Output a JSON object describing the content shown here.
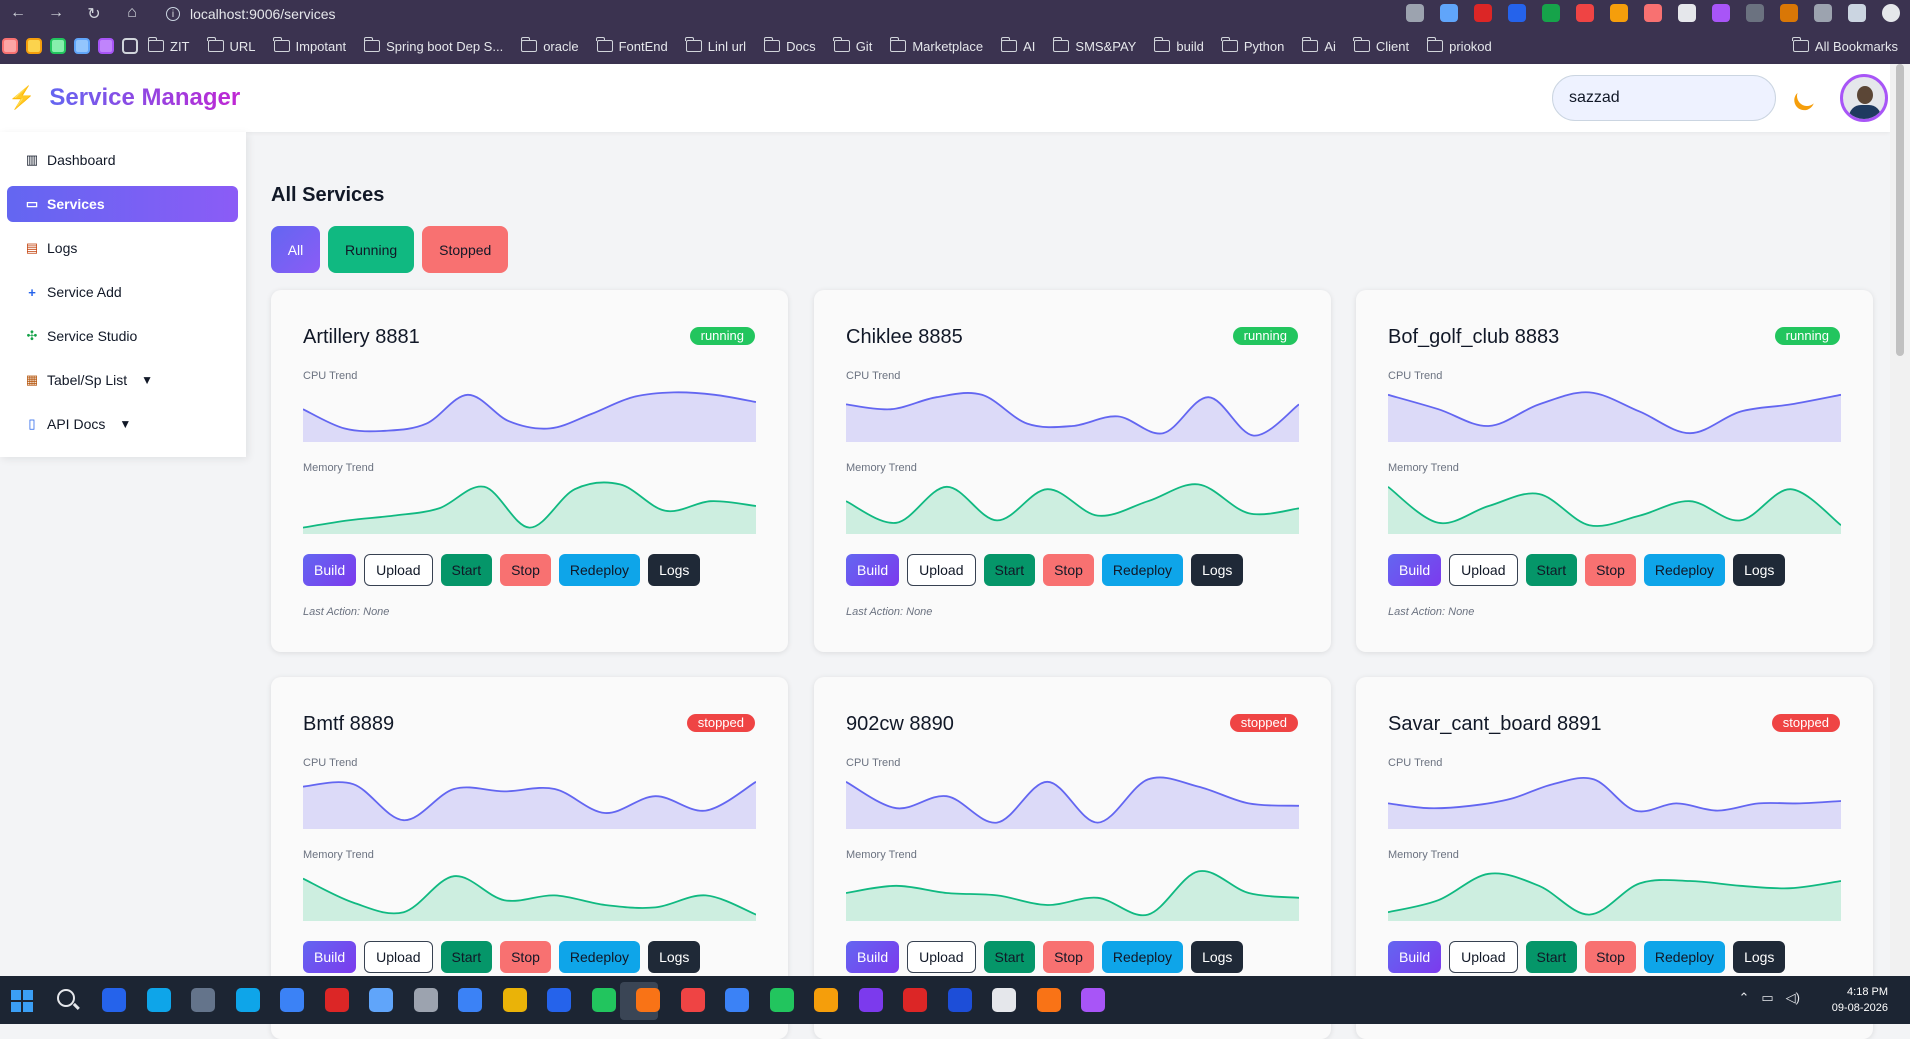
{
  "browser": {
    "url": "localhost:9006/services",
    "bookmarks": [
      "ZIT",
      "URL",
      "Impotant",
      "Spring boot Dep S...",
      "oracle",
      "FontEnd",
      "Linl url",
      "Docs",
      "Git",
      "Marketplace",
      "AI",
      "SMS&PAY",
      "build",
      "Python",
      "Ai",
      "Client",
      "priokod"
    ],
    "all_bookmarks": "All Bookmarks"
  },
  "app": {
    "title": "Service Manager",
    "search_value": "sazzad"
  },
  "sidebar": {
    "items": [
      {
        "label": "Dashboard",
        "icon": "bar-chart-icon"
      },
      {
        "label": "Services",
        "icon": "monitor-icon"
      },
      {
        "label": "Logs",
        "icon": "scroll-icon"
      },
      {
        "label": "Service Add",
        "icon": "plus-icon"
      },
      {
        "label": "Service Studio",
        "icon": "puzzle-icon"
      },
      {
        "label": "Tabel/Sp List",
        "icon": "clipboard-icon"
      },
      {
        "label": "API Docs",
        "icon": "book-icon"
      }
    ]
  },
  "main": {
    "title": "All Services",
    "filters": [
      "All",
      "Running",
      "Stopped"
    ],
    "cpu_label": "CPU Trend",
    "memory_label": "Memory Trend",
    "buttons": [
      "Build",
      "Upload",
      "Start",
      "Stop",
      "Redeploy",
      "Logs"
    ],
    "last_action": "Last Action: None",
    "services": [
      {
        "name": "Artillery 8881",
        "status": "running"
      },
      {
        "name": "Chiklee 8885",
        "status": "running"
      },
      {
        "name": "Bof_golf_club 8883",
        "status": "running"
      },
      {
        "name": "Bmtf 8889",
        "status": "stopped"
      },
      {
        "name": "902cw 8890",
        "status": "stopped"
      },
      {
        "name": "Savar_cant_board 8891",
        "status": "stopped"
      }
    ]
  },
  "taskbar": {
    "time": "4:18 PM",
    "date": "09-08-2026"
  },
  "colors": {
    "accent": "#6366f1",
    "cpu_fill": "#dcdaf8",
    "cpu_line": "#6366f1",
    "mem_fill": "#cdeee0",
    "mem_line": "#10b981",
    "running": "#22c55e",
    "stopped": "#ef4444"
  }
}
